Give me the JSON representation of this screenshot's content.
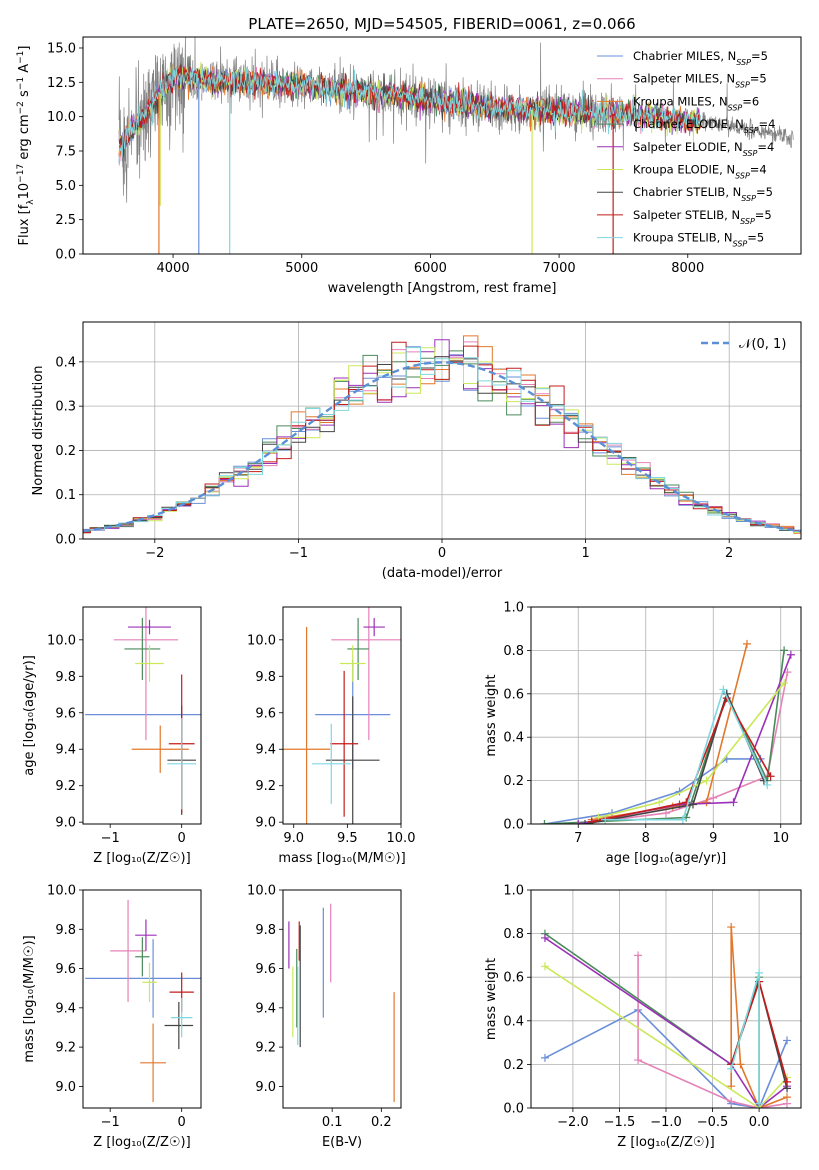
{
  "figure": {
    "title": "PLATE=2650, MJD=54505, FIBERID=0061, z=0.066"
  },
  "chart_data": [
    {
      "id": "spectrum",
      "type": "line",
      "title": "PLATE=2650, MJD=54505, FIBERID=0061, z=0.066",
      "xlabel": "wavelength [Angstrom, rest frame]",
      "ylabel_parts": [
        "Flux [f",
        "λ",
        "10",
        "−17",
        " erg cm",
        "−2",
        " s",
        "−1",
        " A",
        "−1",
        "]"
      ],
      "xlim": [
        3300,
        8880
      ],
      "ylim": [
        0,
        15.8
      ],
      "xticks": [
        4000,
        5000,
        6000,
        7000,
        8000
      ],
      "yticks": [
        0.0,
        2.5,
        5.0,
        7.5,
        10.0,
        12.5,
        15.0
      ],
      "ytick_labels": [
        "0.0",
        "2.5",
        "5.0",
        "7.5",
        "10.0",
        "12.5",
        "15.0"
      ],
      "legend_position": "top-right",
      "continuum_knots": {
        "x": [
          3580,
          3650,
          3750,
          3850,
          3950,
          4050,
          4200,
          4400,
          4600,
          4800,
          5000,
          5200,
          5400,
          5600,
          5800,
          6000,
          6200,
          6400,
          6600,
          6800,
          7000,
          7200,
          7400,
          7600,
          7800,
          8000,
          8200,
          8400,
          8600,
          8800
        ],
        "y": [
          7.8,
          8.6,
          9.8,
          11.0,
          12.4,
          13.0,
          12.7,
          12.6,
          12.5,
          12.4,
          12.3,
          12.1,
          11.9,
          11.7,
          11.5,
          11.2,
          11.0,
          10.8,
          10.6,
          10.5,
          10.4,
          10.3,
          10.2,
          10.1,
          9.9,
          9.7,
          9.5,
          9.2,
          8.9,
          8.5
        ]
      },
      "model_end_x": [
        8100,
        8100,
        8100,
        8100,
        8100,
        8100,
        8100,
        8100,
        8100
      ],
      "deep_dips": [
        {
          "x": 3890,
          "min": 0.0,
          "series": 2
        },
        {
          "x": 3900,
          "min": 3.5,
          "series": 5
        },
        {
          "x": 4200,
          "min": 0.0,
          "series": 0
        },
        {
          "x": 4440,
          "min": 0.0,
          "series": 8
        },
        {
          "x": 6790,
          "min": 0.0,
          "series": 5
        },
        {
          "x": 7420,
          "min": 0.0,
          "series": 7
        }
      ],
      "data_series_name": "data"
    },
    {
      "id": "residuals",
      "type": "histogram",
      "xlabel": "(data-model)/error",
      "ylabel": "Normed distribution",
      "xlim": [
        -2.5,
        2.5
      ],
      "ylim": [
        0,
        0.49
      ],
      "xticks": [
        -2,
        -1,
        0,
        1,
        2
      ],
      "xtick_labels": [
        "−2",
        "−1",
        "0",
        "1",
        "2"
      ],
      "yticks": [
        0.0,
        0.1,
        0.2,
        0.3,
        0.4
      ],
      "ytick_labels": [
        "0.0",
        "0.1",
        "0.2",
        "0.3",
        "0.4"
      ],
      "grid": true,
      "legend_position": "top-right",
      "legend_label": "𝒩(0, 1)",
      "bin_width": 0.1,
      "gaussian": {
        "mu": 0,
        "sigma": 1
      }
    },
    {
      "id": "z-age",
      "type": "errorbar",
      "xlabel": "Z [log₁₀(Z/Z☉)]",
      "ylabel": "age  [log₁₀(age/yr)]",
      "xlim": [
        -1.38,
        0.27
      ],
      "ylim": [
        8.99,
        10.18
      ],
      "xticks": [
        -1,
        0
      ],
      "xtick_labels": [
        "−1",
        "0"
      ],
      "yticks": [
        9.0,
        9.2,
        9.4,
        9.6,
        9.8,
        10.0
      ],
      "ytick_labels": [
        "9.0",
        "9.2",
        "9.4",
        "9.6",
        "9.8",
        "10.0"
      ],
      "points": [
        {
          "x": -0.4,
          "xerr": 0.95,
          "y": 9.59,
          "yerr": 0.0,
          "series": 0
        },
        {
          "x": -0.5,
          "xerr": 0.45,
          "y": 10.0,
          "yerr": 0.55,
          "series": 1
        },
        {
          "x": -0.3,
          "xerr": 0.4,
          "y": 9.4,
          "yerr": 0.13,
          "series": 2
        },
        {
          "x": -0.55,
          "xerr": 0.25,
          "y": 9.95,
          "yerr": 0.17,
          "series": 3
        },
        {
          "x": -0.45,
          "xerr": 0.3,
          "y": 10.07,
          "yerr": 0.04,
          "series": 4
        },
        {
          "x": -0.45,
          "xerr": 0.2,
          "y": 9.87,
          "yerr": 0.1,
          "series": 5
        },
        {
          "x": 0.0,
          "xerr": 0.2,
          "y": 9.34,
          "yerr": 0.3,
          "series": 6
        },
        {
          "x": 0.0,
          "xerr": 0.18,
          "y": 9.43,
          "yerr": 0.38,
          "series": 7
        },
        {
          "x": 0.0,
          "xerr": 0.2,
          "y": 9.32,
          "yerr": 0.25,
          "series": 8
        }
      ]
    },
    {
      "id": "mass-age",
      "type": "errorbar",
      "xlabel": "mass [log₁₀(M/M☉)]",
      "ylabel": "",
      "xlim": [
        8.9,
        10.0
      ],
      "ylim": [
        8.99,
        10.18
      ],
      "xticks": [
        9.0,
        9.5,
        10.0
      ],
      "xtick_labels": [
        "9.0",
        "9.5",
        "10.0"
      ],
      "yticks": [
        9.0,
        9.2,
        9.4,
        9.6,
        9.8,
        10.0
      ],
      "ytick_labels": [
        "9.0",
        "9.2",
        "9.4",
        "9.6",
        "9.8",
        "10.0"
      ],
      "points": [
        {
          "x": 9.55,
          "xerr": 0.35,
          "y": 9.59,
          "yerr": 0.3,
          "series": 0
        },
        {
          "x": 9.7,
          "xerr": 0.35,
          "y": 10.0,
          "yerr": 0.55,
          "series": 1
        },
        {
          "x": 9.12,
          "xerr": 0.22,
          "y": 9.4,
          "yerr": 0.67,
          "series": 2
        },
        {
          "x": 9.6,
          "xerr": 0.1,
          "y": 9.95,
          "yerr": 0.17,
          "series": 3
        },
        {
          "x": 9.75,
          "xerr": 0.1,
          "y": 10.07,
          "yerr": 0.05,
          "series": 4
        },
        {
          "x": 9.55,
          "xerr": 0.12,
          "y": 9.87,
          "yerr": 0.1,
          "series": 5
        },
        {
          "x": 9.55,
          "xerr": 0.25,
          "y": 9.34,
          "yerr": 0.35,
          "series": 6
        },
        {
          "x": 9.47,
          "xerr": 0.13,
          "y": 9.43,
          "yerr": 0.4,
          "series": 7
        },
        {
          "x": 9.35,
          "xerr": 0.18,
          "y": 9.32,
          "yerr": 0.22,
          "series": 8
        }
      ]
    },
    {
      "id": "age-weight",
      "type": "line",
      "xlabel": "age  [log₁₀(age/yr)]",
      "ylabel": "mass weight",
      "xlim": [
        6.3,
        10.3
      ],
      "ylim": [
        0,
        1.0
      ],
      "xticks": [
        7,
        8,
        9,
        10
      ],
      "xtick_labels": [
        "7",
        "8",
        "9",
        "10"
      ],
      "yticks": [
        0.0,
        0.2,
        0.4,
        0.6,
        0.8,
        1.0
      ],
      "ytick_labels": [
        "0.0",
        "0.2",
        "0.4",
        "0.6",
        "0.8",
        "1.0"
      ],
      "grid": true,
      "series": [
        {
          "x": [
            6.5,
            7.5,
            8.5,
            9.2,
            9.7
          ],
          "y": [
            0.0,
            0.05,
            0.15,
            0.3,
            0.3
          ],
          "series": 0
        },
        {
          "x": [
            7.0,
            8.3,
            9.0,
            9.8,
            10.1
          ],
          "y": [
            0.0,
            0.05,
            0.12,
            0.22,
            0.7
          ],
          "series": 1
        },
        {
          "x": [
            7.2,
            8.4,
            8.9,
            9.5
          ],
          "y": [
            0.02,
            0.08,
            0.1,
            0.83
          ],
          "series": 2
        },
        {
          "x": [
            6.5,
            8.6,
            9.2,
            9.8,
            10.05
          ],
          "y": [
            0.0,
            0.03,
            0.6,
            0.2,
            0.8
          ],
          "series": 3
        },
        {
          "x": [
            7.0,
            8.5,
            9.3,
            10.15
          ],
          "y": [
            0.0,
            0.09,
            0.1,
            0.78
          ],
          "series": 4
        },
        {
          "x": [
            7.3,
            8.2,
            8.9,
            10.05
          ],
          "y": [
            0.03,
            0.1,
            0.2,
            0.65
          ],
          "series": 5
        },
        {
          "x": [
            7.1,
            8.7,
            9.2,
            9.75
          ],
          "y": [
            0.0,
            0.09,
            0.6,
            0.2
          ],
          "series": 6
        },
        {
          "x": [
            7.2,
            8.6,
            9.2,
            9.85
          ],
          "y": [
            0.01,
            0.1,
            0.58,
            0.22
          ],
          "series": 7
        },
        {
          "x": [
            7.4,
            8.55,
            9.15,
            9.8
          ],
          "y": [
            0.02,
            0.02,
            0.62,
            0.18
          ],
          "series": 8
        }
      ]
    },
    {
      "id": "z-mass",
      "type": "errorbar",
      "xlabel": "Z [log₁₀(Z/Z☉)]",
      "ylabel": "mass [log₁₀(M/M☉)]",
      "xlim": [
        -1.38,
        0.27
      ],
      "ylim": [
        8.89,
        10.0
      ],
      "xticks": [
        -1,
        0
      ],
      "xtick_labels": [
        "−1",
        "0"
      ],
      "yticks": [
        9.0,
        9.2,
        9.4,
        9.6,
        9.8,
        10.0
      ],
      "ytick_labels": [
        "9.0",
        "9.2",
        "9.4",
        "9.6",
        "9.8",
        "10.0"
      ],
      "points": [
        {
          "x": -0.4,
          "xerr": 0.95,
          "y": 9.55,
          "yerr": 0.2,
          "series": 0
        },
        {
          "x": -0.75,
          "xerr": 0.25,
          "y": 9.69,
          "yerr": 0.26,
          "series": 1
        },
        {
          "x": -0.4,
          "xerr": 0.18,
          "y": 9.12,
          "yerr": 0.2,
          "series": 2
        },
        {
          "x": -0.55,
          "xerr": 0.1,
          "y": 9.66,
          "yerr": 0.1,
          "series": 3
        },
        {
          "x": -0.5,
          "xerr": 0.15,
          "y": 9.77,
          "yerr": 0.08,
          "series": 4
        },
        {
          "x": -0.45,
          "xerr": 0.1,
          "y": 9.53,
          "yerr": 0.1,
          "series": 5
        },
        {
          "x": -0.04,
          "xerr": 0.2,
          "y": 9.31,
          "yerr": 0.12,
          "series": 6
        },
        {
          "x": 0.0,
          "xerr": 0.17,
          "y": 9.48,
          "yerr": 0.1,
          "series": 7
        },
        {
          "x": 0.0,
          "xerr": 0.15,
          "y": 9.35,
          "yerr": 0.1,
          "series": 8
        }
      ]
    },
    {
      "id": "ebv-mass",
      "type": "errorbar",
      "xlabel": "E(B-V)",
      "ylabel": "",
      "xlim": [
        0.0,
        0.24
      ],
      "ylim": [
        8.89,
        10.0
      ],
      "xticks": [
        0.1,
        0.2
      ],
      "xtick_labels": [
        "0.1",
        "0.2"
      ],
      "yticks": [
        9.0,
        9.2,
        9.4,
        9.6,
        9.8,
        10.0
      ],
      "ytick_labels": [
        "9.0",
        "9.2",
        "9.4",
        "9.6",
        "9.8",
        "10.0"
      ],
      "points": [
        {
          "x": 0.082,
          "xerr": 0.0,
          "y": 9.63,
          "yerr": 0.28,
          "series": 0
        },
        {
          "x": 0.097,
          "xerr": 0.0,
          "y": 9.73,
          "yerr": 0.2,
          "series": 1
        },
        {
          "x": 0.226,
          "xerr": 0.0,
          "y": 9.2,
          "yerr": 0.28,
          "series": 2
        },
        {
          "x": 0.028,
          "xerr": 0.0,
          "y": 9.5,
          "yerr": 0.2,
          "series": 3
        },
        {
          "x": 0.012,
          "xerr": 0.0,
          "y": 9.72,
          "yerr": 0.12,
          "series": 4
        },
        {
          "x": 0.02,
          "xerr": 0.0,
          "y": 9.43,
          "yerr": 0.18,
          "series": 5
        },
        {
          "x": 0.035,
          "xerr": 0.0,
          "y": 9.51,
          "yerr": 0.31,
          "series": 6
        },
        {
          "x": 0.033,
          "xerr": 0.0,
          "y": 9.74,
          "yerr": 0.1,
          "series": 7
        },
        {
          "x": 0.03,
          "xerr": 0.0,
          "y": 9.41,
          "yerr": 0.2,
          "series": 8
        }
      ]
    },
    {
      "id": "z-weight",
      "type": "line",
      "xlabel": "Z [log₁₀(Z/Z☉)]",
      "ylabel": "mass weight",
      "xlim": [
        -2.45,
        0.45
      ],
      "ylim": [
        0,
        1.0
      ],
      "xticks": [
        -2.0,
        -1.5,
        -1.0,
        -0.5,
        0.0
      ],
      "xtick_labels": [
        "−2.0",
        "−1.5",
        "−1.0",
        "−0.5",
        "0.0"
      ],
      "yticks": [
        0.0,
        0.2,
        0.4,
        0.6,
        0.8,
        1.0
      ],
      "ytick_labels": [
        "0.0",
        "0.2",
        "0.4",
        "0.6",
        "0.8",
        "1.0"
      ],
      "grid": true,
      "series": [
        {
          "x": [
            -2.3,
            -1.3,
            -0.3,
            0.0,
            0.3
          ],
          "y": [
            0.23,
            0.45,
            0.02,
            0.0,
            0.31
          ],
          "series": 0
        },
        {
          "x": [
            -1.3,
            -1.3,
            -0.3,
            0.0,
            0.3
          ],
          "y": [
            0.7,
            0.22,
            0.03,
            0.0,
            0.02
          ],
          "series": 1
        },
        {
          "x": [
            -0.3,
            -0.3,
            -0.2,
            0.0,
            0.3
          ],
          "y": [
            0.1,
            0.83,
            0.2,
            0.0,
            0.05
          ],
          "series": 2
        },
        {
          "x": [
            -2.3,
            -0.3,
            0.0,
            0.0
          ],
          "y": [
            0.8,
            0.2,
            0.6,
            0.0
          ],
          "series": 3
        },
        {
          "x": [
            -2.3,
            -0.3,
            0.0,
            0.3
          ],
          "y": [
            0.78,
            0.2,
            0.0,
            0.1
          ],
          "series": 4
        },
        {
          "x": [
            -2.3,
            0.0,
            0.3
          ],
          "y": [
            0.65,
            0.0,
            0.14
          ],
          "series": 5
        },
        {
          "x": [
            -0.3,
            0.0,
            0.3
          ],
          "y": [
            0.2,
            0.58,
            0.09
          ],
          "series": 6
        },
        {
          "x": [
            -0.3,
            0.0,
            0.3
          ],
          "y": [
            0.2,
            0.58,
            0.12
          ],
          "series": 7
        },
        {
          "x": [
            -0.3,
            0.0,
            0.0
          ],
          "y": [
            0.18,
            0.62,
            0.02
          ],
          "series": 8
        }
      ]
    }
  ],
  "series_styles": [
    {
      "name_prefix": "Chabrier MILES, N",
      "sub": "SSP",
      "suffix": "=5",
      "color": "#6a8fd8"
    },
    {
      "name_prefix": "Salpeter MILES, N",
      "sub": "SSP",
      "suffix": "=5",
      "color": "#e582b8"
    },
    {
      "name_prefix": "Kroupa MILES, N",
      "sub": "SSP",
      "suffix": "=6",
      "color": "#e3772b"
    },
    {
      "name_prefix": "Chabrier ELODIE, N",
      "sub": "SSP",
      "suffix": "=4",
      "color": "#4a8a5a"
    },
    {
      "name_prefix": "Salpeter ELODIE, N",
      "sub": "SSP",
      "suffix": "=4",
      "color": "#9b30b8"
    },
    {
      "name_prefix": "Kroupa ELODIE, N",
      "sub": "SSP",
      "suffix": "=4",
      "color": "#cbe85a"
    },
    {
      "name_prefix": "Chabrier STELIB, N",
      "sub": "SSP",
      "suffix": "=5",
      "color": "#444444"
    },
    {
      "name_prefix": "Salpeter STELIB, N",
      "sub": "SSP",
      "suffix": "=5",
      "color": "#c41c1c"
    },
    {
      "name_prefix": "Kroupa STELIB, N",
      "sub": "SSP",
      "suffix": "=5",
      "color": "#7fd7e0"
    }
  ],
  "data_color": "#808080",
  "gaussian_color": "#5b8fd6"
}
